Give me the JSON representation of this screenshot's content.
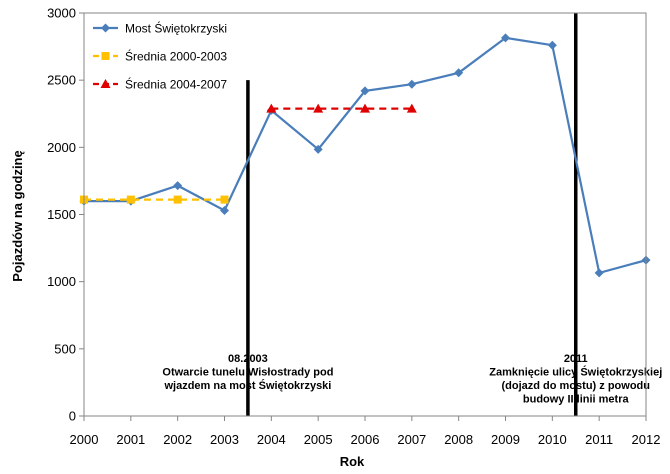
{
  "chart_data": {
    "type": "line",
    "title": "",
    "xlabel": "Rok",
    "ylabel": "Pojazdów na godzinę",
    "xlim": [
      2000,
      2012
    ],
    "ylim": [
      0,
      3000
    ],
    "yticks": [
      0,
      500,
      1000,
      1500,
      2000,
      2500,
      3000
    ],
    "xticks": [
      2000,
      2001,
      2002,
      2003,
      2004,
      2005,
      2006,
      2007,
      2008,
      2009,
      2010,
      2011,
      2012
    ],
    "grid": false,
    "legend": "top-left",
    "series": [
      {
        "name": "Most Świętokrzyski",
        "color": "#4a7ebb",
        "marker": "diamond",
        "style": "solid",
        "x": [
          2000,
          2001,
          2002,
          2003,
          2004,
          2005,
          2006,
          2007,
          2008,
          2009,
          2010,
          2011,
          2012
        ],
        "y": [
          1600,
          1600,
          1715,
          1530,
          2275,
          1985,
          2420,
          2470,
          2555,
          2815,
          2760,
          1065,
          1160
        ]
      },
      {
        "name": "Średnia 2000-2003",
        "color": "#ffc000",
        "marker": "square",
        "style": "dashed",
        "x": [
          2000,
          2001,
          2002,
          2003
        ],
        "y": [
          1611,
          1611,
          1611,
          1611
        ]
      },
      {
        "name": "Średnia 2004-2007",
        "color": "#e00000",
        "marker": "triangle",
        "style": "dashed",
        "x": [
          2004,
          2005,
          2006,
          2007
        ],
        "y": [
          2288,
          2288,
          2288,
          2288
        ]
      }
    ],
    "vlines": [
      {
        "x": 2003.5,
        "top": 2500,
        "date": "08.2003",
        "lines": [
          "Otwarcie tunelu Wisłostrady pod",
          "wjazdem na most Świętokrzyski"
        ]
      },
      {
        "x": 2010.5,
        "top": 3000,
        "date": "2011",
        "lines": [
          "Zamknięcie ulicy Świętokrzyskiej",
          "(dojazd do mostu) z powodu",
          "budowy II linii metra"
        ]
      }
    ]
  }
}
